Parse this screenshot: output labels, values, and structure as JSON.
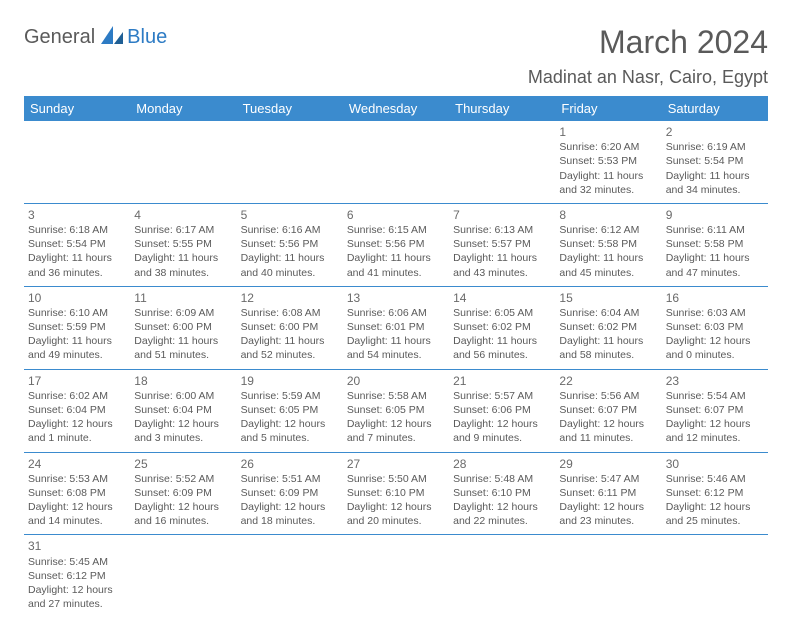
{
  "logo": {
    "part1": "General",
    "part2": "Blue"
  },
  "title": "March 2024",
  "location": "Madinat an Nasr, Cairo, Egypt",
  "colors": {
    "header_bg": "#3b8bce",
    "header_fg": "#ffffff",
    "text": "#5a5a5a",
    "accent": "#2d7bc4",
    "rule": "#3b8bce"
  },
  "weekdays": [
    "Sunday",
    "Monday",
    "Tuesday",
    "Wednesday",
    "Thursday",
    "Friday",
    "Saturday"
  ],
  "weeks": [
    [
      null,
      null,
      null,
      null,
      null,
      {
        "n": "1",
        "sr": "6:20 AM",
        "ss": "5:53 PM",
        "dl": "11 hours and 32 minutes."
      },
      {
        "n": "2",
        "sr": "6:19 AM",
        "ss": "5:54 PM",
        "dl": "11 hours and 34 minutes."
      }
    ],
    [
      {
        "n": "3",
        "sr": "6:18 AM",
        "ss": "5:54 PM",
        "dl": "11 hours and 36 minutes."
      },
      {
        "n": "4",
        "sr": "6:17 AM",
        "ss": "5:55 PM",
        "dl": "11 hours and 38 minutes."
      },
      {
        "n": "5",
        "sr": "6:16 AM",
        "ss": "5:56 PM",
        "dl": "11 hours and 40 minutes."
      },
      {
        "n": "6",
        "sr": "6:15 AM",
        "ss": "5:56 PM",
        "dl": "11 hours and 41 minutes."
      },
      {
        "n": "7",
        "sr": "6:13 AM",
        "ss": "5:57 PM",
        "dl": "11 hours and 43 minutes."
      },
      {
        "n": "8",
        "sr": "6:12 AM",
        "ss": "5:58 PM",
        "dl": "11 hours and 45 minutes."
      },
      {
        "n": "9",
        "sr": "6:11 AM",
        "ss": "5:58 PM",
        "dl": "11 hours and 47 minutes."
      }
    ],
    [
      {
        "n": "10",
        "sr": "6:10 AM",
        "ss": "5:59 PM",
        "dl": "11 hours and 49 minutes."
      },
      {
        "n": "11",
        "sr": "6:09 AM",
        "ss": "6:00 PM",
        "dl": "11 hours and 51 minutes."
      },
      {
        "n": "12",
        "sr": "6:08 AM",
        "ss": "6:00 PM",
        "dl": "11 hours and 52 minutes."
      },
      {
        "n": "13",
        "sr": "6:06 AM",
        "ss": "6:01 PM",
        "dl": "11 hours and 54 minutes."
      },
      {
        "n": "14",
        "sr": "6:05 AM",
        "ss": "6:02 PM",
        "dl": "11 hours and 56 minutes."
      },
      {
        "n": "15",
        "sr": "6:04 AM",
        "ss": "6:02 PM",
        "dl": "11 hours and 58 minutes."
      },
      {
        "n": "16",
        "sr": "6:03 AM",
        "ss": "6:03 PM",
        "dl": "12 hours and 0 minutes."
      }
    ],
    [
      {
        "n": "17",
        "sr": "6:02 AM",
        "ss": "6:04 PM",
        "dl": "12 hours and 1 minute."
      },
      {
        "n": "18",
        "sr": "6:00 AM",
        "ss": "6:04 PM",
        "dl": "12 hours and 3 minutes."
      },
      {
        "n": "19",
        "sr": "5:59 AM",
        "ss": "6:05 PM",
        "dl": "12 hours and 5 minutes."
      },
      {
        "n": "20",
        "sr": "5:58 AM",
        "ss": "6:05 PM",
        "dl": "12 hours and 7 minutes."
      },
      {
        "n": "21",
        "sr": "5:57 AM",
        "ss": "6:06 PM",
        "dl": "12 hours and 9 minutes."
      },
      {
        "n": "22",
        "sr": "5:56 AM",
        "ss": "6:07 PM",
        "dl": "12 hours and 11 minutes."
      },
      {
        "n": "23",
        "sr": "5:54 AM",
        "ss": "6:07 PM",
        "dl": "12 hours and 12 minutes."
      }
    ],
    [
      {
        "n": "24",
        "sr": "5:53 AM",
        "ss": "6:08 PM",
        "dl": "12 hours and 14 minutes."
      },
      {
        "n": "25",
        "sr": "5:52 AM",
        "ss": "6:09 PM",
        "dl": "12 hours and 16 minutes."
      },
      {
        "n": "26",
        "sr": "5:51 AM",
        "ss": "6:09 PM",
        "dl": "12 hours and 18 minutes."
      },
      {
        "n": "27",
        "sr": "5:50 AM",
        "ss": "6:10 PM",
        "dl": "12 hours and 20 minutes."
      },
      {
        "n": "28",
        "sr": "5:48 AM",
        "ss": "6:10 PM",
        "dl": "12 hours and 22 minutes."
      },
      {
        "n": "29",
        "sr": "5:47 AM",
        "ss": "6:11 PM",
        "dl": "12 hours and 23 minutes."
      },
      {
        "n": "30",
        "sr": "5:46 AM",
        "ss": "6:12 PM",
        "dl": "12 hours and 25 minutes."
      }
    ],
    [
      {
        "n": "31",
        "sr": "5:45 AM",
        "ss": "6:12 PM",
        "dl": "12 hours and 27 minutes."
      },
      null,
      null,
      null,
      null,
      null,
      null
    ]
  ],
  "labels": {
    "sunrise": "Sunrise:",
    "sunset": "Sunset:",
    "daylight": "Daylight:"
  }
}
